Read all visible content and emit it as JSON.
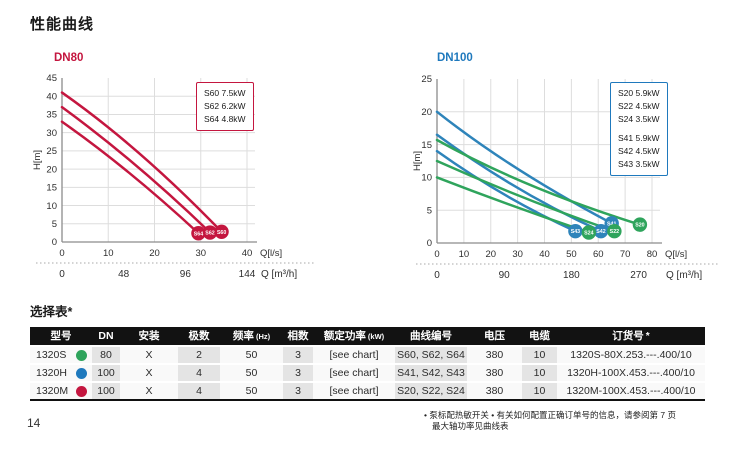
{
  "page": {
    "title": "性能曲线"
  },
  "colors": {
    "red": "#C4163F",
    "blue_accent": "#1F79BD",
    "blue_curve": "#2E84BA",
    "green": "#2FA45C",
    "grid": "#dddddd",
    "axis": "#8c8c8c",
    "header_bg": "#121212",
    "shade": "#e4e4e4"
  },
  "chart_data": [
    {
      "type": "line",
      "title": "DN80",
      "accent": "#C4163F",
      "ylabel": "H[m]",
      "xlabel": "Q[l/s]",
      "xlabel2": "Q [m³/h]",
      "xlim": [
        0,
        40
      ],
      "ylim": [
        0,
        45
      ],
      "yticks": [
        0,
        5,
        10,
        15,
        20,
        25,
        30,
        35,
        40,
        45
      ],
      "xticks": [
        0,
        10,
        20,
        30,
        40
      ],
      "x2ticks": [
        0,
        48,
        96,
        144
      ],
      "x2_per_x": 3.6,
      "grid": true,
      "legend_position": "top-right",
      "legend_groups": [
        [
          "S60 7.5kW",
          "S62 6.2kW",
          "S64 4.8kW"
        ]
      ],
      "series": [
        {
          "name": "S60",
          "color": "#C4163F",
          "points": [
            [
              0,
              41
            ],
            [
              17,
              24
            ],
            [
              34.5,
              2.8
            ]
          ]
        },
        {
          "name": "S62",
          "color": "#C4163F",
          "points": [
            [
              0,
              37
            ],
            [
              16,
              21
            ],
            [
              32,
              2.6
            ]
          ]
        },
        {
          "name": "S64",
          "color": "#C4163F",
          "points": [
            [
              0,
              33
            ],
            [
              14.5,
              19
            ],
            [
              29.5,
              2.4
            ]
          ]
        }
      ]
    },
    {
      "type": "line",
      "title": "DN100",
      "accent": "#1F79BD",
      "ylabel": "H[m]",
      "xlabel": "Q[l/s]",
      "xlabel2": "Q [m³/h]",
      "xlim": [
        0,
        80
      ],
      "ylim": [
        0,
        25
      ],
      "yticks": [
        0,
        5,
        10,
        15,
        20,
        25
      ],
      "xticks": [
        0,
        10,
        20,
        30,
        40,
        50,
        60,
        70,
        80
      ],
      "x2ticks": [
        0,
        90,
        180,
        270
      ],
      "x2_per_x": 3.6,
      "grid": true,
      "legend_position": "top-right",
      "legend_groups": [
        [
          "S20 5.9kW",
          "S22 4.5kW",
          "S24 3.5kW"
        ],
        [
          "S41 5.9kW",
          "S42 4.5kW",
          "S43 3.5kW"
        ]
      ],
      "series": [
        {
          "name": "S41",
          "color": "#2E84BA",
          "points": [
            [
              0,
              20
            ],
            [
              30,
              11.3
            ],
            [
              65,
              3.0
            ]
          ]
        },
        {
          "name": "S42",
          "color": "#2E84BA",
          "points": [
            [
              0,
              16.5
            ],
            [
              30,
              8.4
            ],
            [
              61,
              1.8
            ]
          ]
        },
        {
          "name": "S43",
          "color": "#2E84BA",
          "points": [
            [
              0,
              14
            ],
            [
              25,
              7.4
            ],
            [
              51.5,
              1.8
            ]
          ]
        },
        {
          "name": "S20",
          "color": "#2FA45C",
          "points": [
            [
              0,
              15.7
            ],
            [
              35,
              8.8
            ],
            [
              75.5,
              2.8
            ]
          ]
        },
        {
          "name": "S22",
          "color": "#2FA45C",
          "points": [
            [
              0,
              12.5
            ],
            [
              33,
              6.8
            ],
            [
              66,
              1.8
            ]
          ]
        },
        {
          "name": "S24",
          "color": "#2FA45C",
          "points": [
            [
              0,
              10
            ],
            [
              28,
              5.7
            ],
            [
              56.5,
              1.6
            ]
          ]
        }
      ]
    }
  ],
  "table": {
    "title": "选择表*",
    "columns": [
      {
        "label": "型号"
      },
      {
        "label": "DN"
      },
      {
        "label": "安装"
      },
      {
        "label": "极数"
      },
      {
        "label": "频率",
        "sub": "(Hz)"
      },
      {
        "label": "相数"
      },
      {
        "label": "额定功率",
        "sub": "(kW)"
      },
      {
        "label": "曲线编号"
      },
      {
        "label": "电压"
      },
      {
        "label": "电缆"
      },
      {
        "label": "订货号",
        "star": "*"
      }
    ],
    "rows": [
      {
        "model": "1320S",
        "dot_color": "#2FA45C",
        "cells": [
          "80",
          "X",
          "2",
          "50",
          "3",
          "[see chart]",
          "S60, S62, S64",
          "380",
          "10",
          "1320S-80X.253.---.400/10"
        ]
      },
      {
        "model": "1320H",
        "dot_color": "#1F79BD",
        "cells": [
          "100",
          "X",
          "4",
          "50",
          "3",
          "[see chart]",
          "S41, S42, S43",
          "380",
          "10",
          "1320H-100X.453.---.400/10"
        ]
      },
      {
        "model": "1320M",
        "dot_color": "#C4163F",
        "cells": [
          "100",
          "X",
          "4",
          "50",
          "3",
          "[see chart]",
          "S20, S22, S24",
          "380",
          "10",
          "1320M-100X.453.---.400/10"
        ]
      }
    ]
  },
  "footer": {
    "page_number": "14",
    "note_line1": "• 泵标配热敏开关 • 有关如何配置正确订单号的信息，请参阅第 7 页",
    "note_line2": "最大轴功率见曲线表"
  }
}
